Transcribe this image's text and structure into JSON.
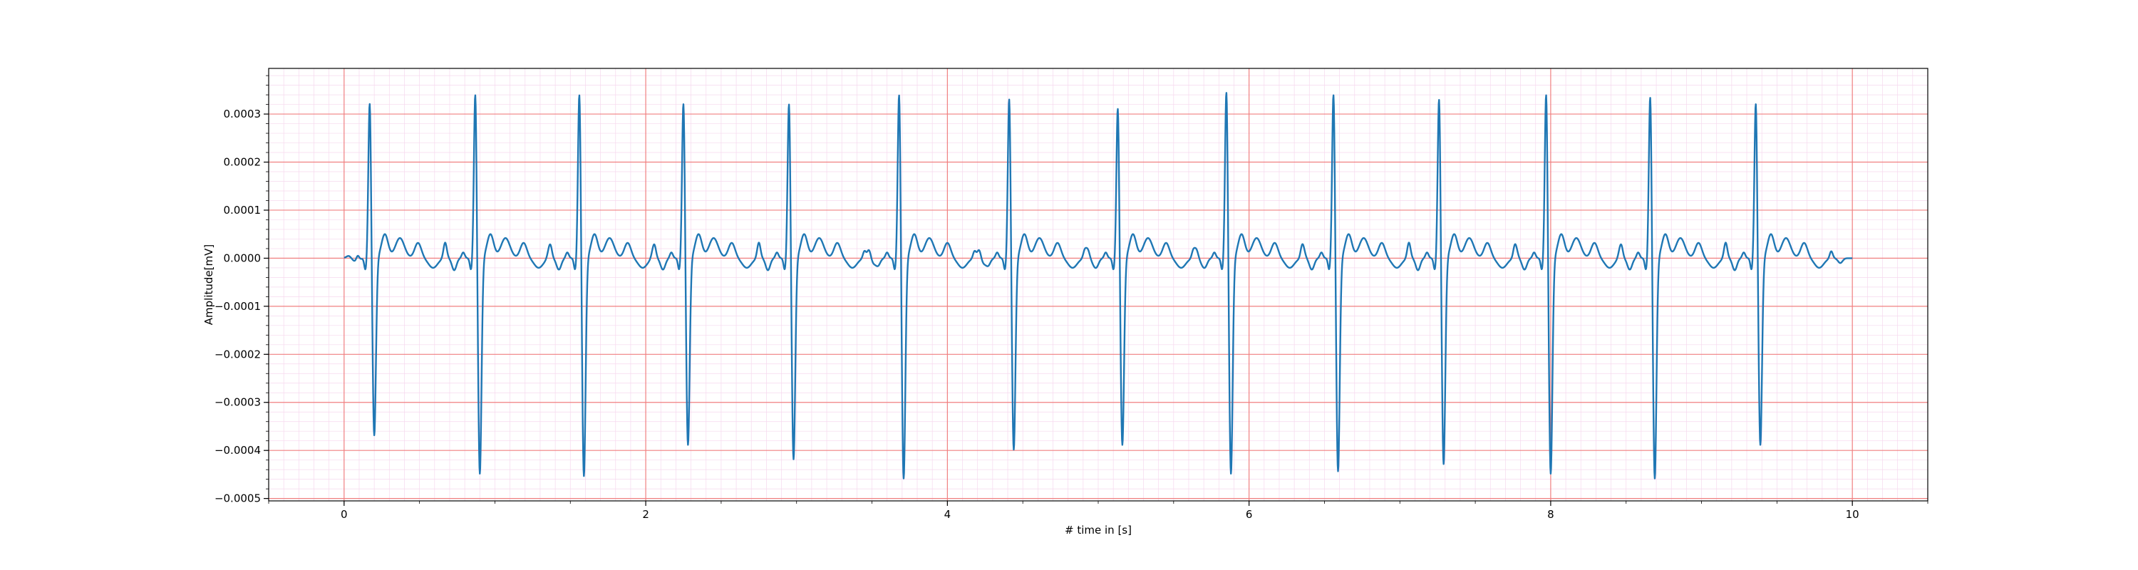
{
  "chart_data": {
    "type": "line",
    "title": "",
    "xlabel": "# time in [s]",
    "ylabel": "Amplitude[mV]",
    "xlim": [
      -0.5,
      10.5
    ],
    "ylim": [
      -0.000505,
      0.000395
    ],
    "grid": {
      "major": true,
      "minor": true,
      "major_color": "#f08080",
      "minor_color": "#f6d8ee"
    },
    "line_color": "#1f77b4",
    "x_ticks": [
      {
        "value": 0,
        "label": "0"
      },
      {
        "value": 2,
        "label": "2"
      },
      {
        "value": 4,
        "label": "4"
      },
      {
        "value": 6,
        "label": "6"
      },
      {
        "value": 8,
        "label": "8"
      },
      {
        "value": 10,
        "label": "10"
      }
    ],
    "y_ticks": [
      {
        "value": 0.0003,
        "label": "0.0003"
      },
      {
        "value": 0.0002,
        "label": "0.0002"
      },
      {
        "value": 0.0001,
        "label": "0.0001"
      },
      {
        "value": 0.0,
        "label": "0.0000"
      },
      {
        "value": -0.0001,
        "label": "−0.0001"
      },
      {
        "value": -0.0002,
        "label": "−0.0002"
      },
      {
        "value": -0.0003,
        "label": "−0.0003"
      },
      {
        "value": -0.0004,
        "label": "−0.0004"
      },
      {
        "value": -0.0005,
        "label": "−0.0005"
      }
    ],
    "beats": [
      {
        "t": 0.17,
        "r": 0.00033,
        "s": -0.00037
      },
      {
        "t": 0.87,
        "r": 0.00035,
        "s": -0.00045
      },
      {
        "t": 1.56,
        "r": 0.00035,
        "s": -0.000455
      },
      {
        "t": 2.25,
        "r": 0.00033,
        "s": -0.00039
      },
      {
        "t": 2.95,
        "r": 0.00033,
        "s": -0.00042
      },
      {
        "t": 3.68,
        "r": 0.00035,
        "s": -0.00046
      },
      {
        "t": 4.41,
        "r": 0.00034,
        "s": -0.0004
      },
      {
        "t": 5.13,
        "r": 0.00032,
        "s": -0.00039
      },
      {
        "t": 5.85,
        "r": 0.000355,
        "s": -0.00045
      },
      {
        "t": 6.56,
        "r": 0.00035,
        "s": -0.000445
      },
      {
        "t": 7.26,
        "r": 0.00034,
        "s": -0.00043
      },
      {
        "t": 7.97,
        "r": 0.00035,
        "s": -0.00045
      },
      {
        "t": 8.66,
        "r": 0.000345,
        "s": -0.00046
      },
      {
        "t": 9.36,
        "r": 0.00033,
        "s": -0.00039
      }
    ],
    "t_start": 0.0,
    "t_end": 10.0
  }
}
